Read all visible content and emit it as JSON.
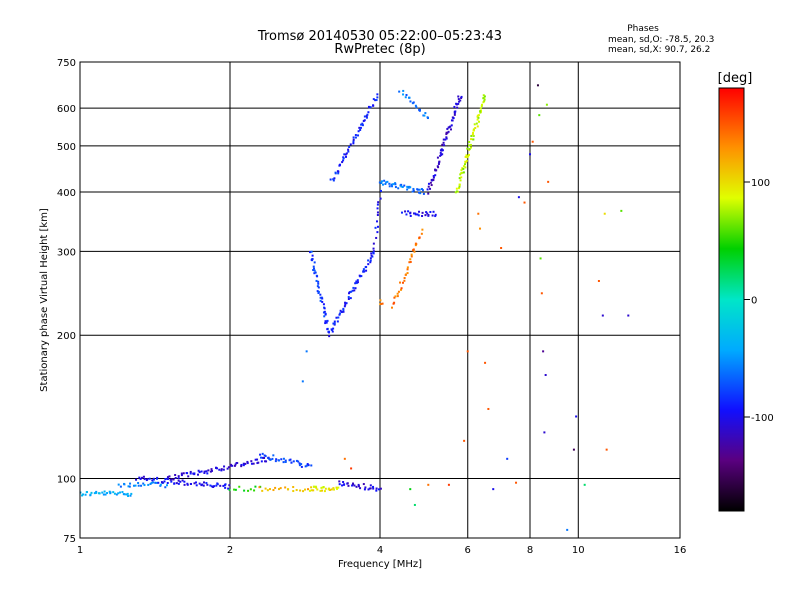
{
  "chart_data": {
    "type": "scatter",
    "title": "Tromsø 20140530 05:22:00–05:23:43",
    "subtitle": "RwPretec (8p)",
    "xlabel": "Frequency [MHz]",
    "ylabel": "Stationary phase Virtual Height [km]",
    "x_scale": "log",
    "y_scale": "log",
    "xlim": [
      1,
      16
    ],
    "ylim": [
      75,
      750
    ],
    "x_ticks": [
      1,
      2,
      4,
      6,
      8,
      10,
      16
    ],
    "x_tick_labels": [
      "1",
      "2",
      "4",
      "6",
      "8",
      "10",
      "16"
    ],
    "y_ticks": [
      75,
      100,
      200,
      300,
      400,
      500,
      600,
      750
    ],
    "y_tick_labels": [
      "75",
      "100",
      "200",
      "300",
      "400",
      "500",
      "600",
      "750"
    ],
    "grid": true,
    "phase_info": {
      "title": "Phases",
      "o_line": "mean, sd,O: -78.5, 20.3",
      "x_line": "mean, sd,X:  90.7, 26.2"
    },
    "colorbar": {
      "label": "[deg]",
      "range": [
        -180,
        180
      ],
      "ticks": [
        100,
        0,
        -100
      ],
      "tick_labels": [
        "100",
        "0",
        "-100"
      ]
    },
    "traces": [
      {
        "x_start": 1.0,
        "x_end": 1.27,
        "h_start": 93,
        "h_end": 93,
        "phase": -40,
        "count": 35
      },
      {
        "x_start": 1.2,
        "x_end": 1.5,
        "h_start": 97,
        "h_end": 97,
        "phase": -60,
        "count": 25
      },
      {
        "x_start": 1.3,
        "x_end": 2.0,
        "h_start": 100,
        "h_end": 96,
        "phase": -100,
        "count": 60
      },
      {
        "x_start": 1.5,
        "x_end": 2.4,
        "h_start": 100,
        "h_end": 110,
        "phase": -105,
        "count": 70
      },
      {
        "x_start": 2.3,
        "x_end": 2.9,
        "h_start": 112,
        "h_end": 106,
        "phase": -80,
        "count": 35
      },
      {
        "x_start": 2.0,
        "x_end": 2.3,
        "h_start": 95,
        "h_end": 95,
        "phase": 40,
        "count": 10
      },
      {
        "x_start": 2.3,
        "x_end": 2.9,
        "h_start": 95,
        "h_end": 95,
        "phase": 120,
        "count": 20
      },
      {
        "x_start": 2.9,
        "x_end": 3.3,
        "h_start": 95,
        "h_end": 95,
        "phase": 95,
        "count": 25
      },
      {
        "x_start": 3.3,
        "x_end": 4.0,
        "h_start": 98,
        "h_end": 95,
        "phase": -105,
        "count": 30
      },
      {
        "x_start": 2.9,
        "x_end": 3.15,
        "h_start": 300,
        "h_end": 205,
        "phase": -80,
        "count": 45
      },
      {
        "x_start": 3.15,
        "x_end": 3.9,
        "h_start": 200,
        "h_end": 300,
        "phase": -90,
        "count": 60
      },
      {
        "x_start": 3.9,
        "x_end": 4.0,
        "h_start": 300,
        "h_end": 400,
        "phase": -95,
        "count": 15
      },
      {
        "x_start": 3.2,
        "x_end": 3.95,
        "h_start": 420,
        "h_end": 640,
        "phase": -90,
        "count": 55
      },
      {
        "x_start": 4.0,
        "x_end": 4.9,
        "h_start": 420,
        "h_end": 400,
        "phase": -60,
        "count": 40
      },
      {
        "x_start": 4.45,
        "x_end": 5.2,
        "h_start": 360,
        "h_end": 360,
        "phase": -100,
        "count": 25
      },
      {
        "x_start": 5.0,
        "x_end": 5.8,
        "h_start": 400,
        "h_end": 640,
        "phase": -110,
        "count": 70
      },
      {
        "x_start": 4.4,
        "x_end": 5.0,
        "h_start": 650,
        "h_end": 570,
        "phase": -60,
        "count": 20
      },
      {
        "x_start": 4.0,
        "x_end": 4.05,
        "h_start": 235,
        "h_end": 235,
        "phase": 140,
        "count": 4
      },
      {
        "x_start": 4.25,
        "x_end": 4.85,
        "h_start": 230,
        "h_end": 330,
        "phase": 140,
        "count": 35
      },
      {
        "x_start": 5.7,
        "x_end": 6.5,
        "h_start": 400,
        "h_end": 640,
        "phase": 80,
        "count": 70
      }
    ],
    "scattered_points": [
      {
        "x": 2.8,
        "h": 160,
        "phase": -60
      },
      {
        "x": 2.85,
        "h": 185,
        "phase": -60
      },
      {
        "x": 3.4,
        "h": 110,
        "phase": 140
      },
      {
        "x": 3.5,
        "h": 105,
        "phase": 160
      },
      {
        "x": 4.6,
        "h": 95,
        "phase": 40
      },
      {
        "x": 4.7,
        "h": 88,
        "phase": 20
      },
      {
        "x": 5.0,
        "h": 97,
        "phase": 140
      },
      {
        "x": 5.5,
        "h": 97,
        "phase": 160
      },
      {
        "x": 5.9,
        "h": 120,
        "phase": 150
      },
      {
        "x": 6.0,
        "h": 185,
        "phase": 150
      },
      {
        "x": 6.3,
        "h": 360,
        "phase": 140
      },
      {
        "x": 6.35,
        "h": 335,
        "phase": 130
      },
      {
        "x": 6.5,
        "h": 175,
        "phase": 150
      },
      {
        "x": 6.6,
        "h": 140,
        "phase": 150
      },
      {
        "x": 6.75,
        "h": 95,
        "phase": -100
      },
      {
        "x": 7.0,
        "h": 305,
        "phase": 150
      },
      {
        "x": 7.2,
        "h": 110,
        "phase": -80
      },
      {
        "x": 7.5,
        "h": 98,
        "phase": 150
      },
      {
        "x": 7.6,
        "h": 390,
        "phase": -100
      },
      {
        "x": 7.8,
        "h": 380,
        "phase": 150
      },
      {
        "x": 8.0,
        "h": 480,
        "phase": -100
      },
      {
        "x": 8.1,
        "h": 510,
        "phase": 150
      },
      {
        "x": 8.3,
        "h": 670,
        "phase": -160
      },
      {
        "x": 8.35,
        "h": 580,
        "phase": 60
      },
      {
        "x": 8.4,
        "h": 290,
        "phase": 60
      },
      {
        "x": 8.45,
        "h": 245,
        "phase": 150
      },
      {
        "x": 8.5,
        "h": 185,
        "phase": -130
      },
      {
        "x": 8.6,
        "h": 165,
        "phase": -110
      },
      {
        "x": 8.65,
        "h": 610,
        "phase": 70
      },
      {
        "x": 8.7,
        "h": 420,
        "phase": 150
      },
      {
        "x": 8.55,
        "h": 125,
        "phase": -110
      },
      {
        "x": 9.5,
        "h": 78,
        "phase": -60
      },
      {
        "x": 9.8,
        "h": 115,
        "phase": -150
      },
      {
        "x": 9.9,
        "h": 135,
        "phase": -100
      },
      {
        "x": 10.3,
        "h": 97,
        "phase": 20
      },
      {
        "x": 11.0,
        "h": 260,
        "phase": 150
      },
      {
        "x": 11.2,
        "h": 220,
        "phase": -110
      },
      {
        "x": 11.3,
        "h": 360,
        "phase": 100
      },
      {
        "x": 11.4,
        "h": 115,
        "phase": 150
      },
      {
        "x": 12.2,
        "h": 365,
        "phase": 60
      },
      {
        "x": 12.6,
        "h": 220,
        "phase": -110
      }
    ]
  }
}
